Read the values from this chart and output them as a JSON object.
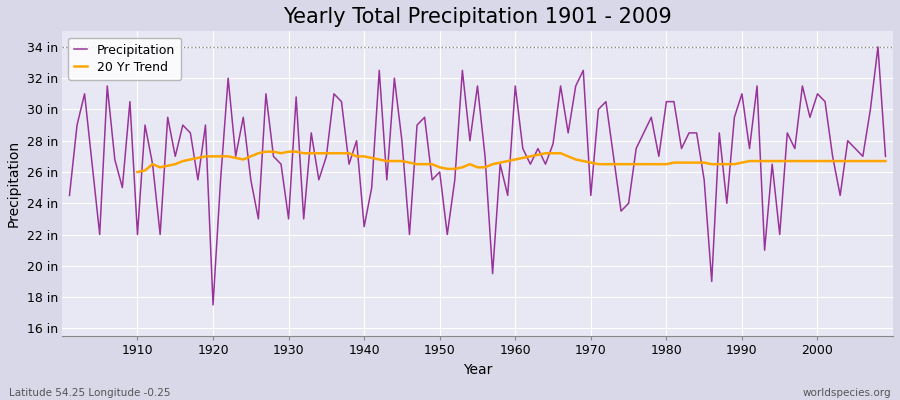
{
  "title": "Yearly Total Precipitation 1901 - 2009",
  "xlabel": "Year",
  "ylabel": "Precipitation",
  "lat_lon_label": "Latitude 54.25 Longitude -0.25",
  "watermark": "worldspecies.org",
  "years": [
    1901,
    1902,
    1903,
    1904,
    1905,
    1906,
    1907,
    1908,
    1909,
    1910,
    1911,
    1912,
    1913,
    1914,
    1915,
    1916,
    1917,
    1918,
    1919,
    1920,
    1921,
    1922,
    1923,
    1924,
    1925,
    1926,
    1927,
    1928,
    1929,
    1930,
    1931,
    1932,
    1933,
    1934,
    1935,
    1936,
    1937,
    1938,
    1939,
    1940,
    1941,
    1942,
    1943,
    1944,
    1945,
    1946,
    1947,
    1948,
    1949,
    1950,
    1951,
    1952,
    1953,
    1954,
    1955,
    1956,
    1957,
    1958,
    1959,
    1960,
    1961,
    1962,
    1963,
    1964,
    1965,
    1966,
    1967,
    1968,
    1969,
    1970,
    1971,
    1972,
    1973,
    1974,
    1975,
    1976,
    1977,
    1978,
    1979,
    1980,
    1981,
    1982,
    1983,
    1984,
    1985,
    1986,
    1987,
    1988,
    1989,
    1990,
    1991,
    1992,
    1993,
    1994,
    1995,
    1996,
    1997,
    1998,
    1999,
    2000,
    2001,
    2002,
    2003,
    2004,
    2005,
    2006,
    2007,
    2008,
    2009
  ],
  "precipitation": [
    24.5,
    29.0,
    31.0,
    26.5,
    22.0,
    31.5,
    26.8,
    25.0,
    30.5,
    22.0,
    29.0,
    26.5,
    22.0,
    29.5,
    27.0,
    29.0,
    28.5,
    25.5,
    29.0,
    17.5,
    25.5,
    32.0,
    27.0,
    29.5,
    25.5,
    23.0,
    31.0,
    27.0,
    26.5,
    23.0,
    30.8,
    23.0,
    28.5,
    25.5,
    27.0,
    31.0,
    30.5,
    26.5,
    28.0,
    22.5,
    25.0,
    32.5,
    25.5,
    32.0,
    28.0,
    22.0,
    29.0,
    29.5,
    25.5,
    26.0,
    22.0,
    25.5,
    32.5,
    28.0,
    31.5,
    27.0,
    19.5,
    26.5,
    24.5,
    31.5,
    27.5,
    26.5,
    27.5,
    26.5,
    27.8,
    31.5,
    28.5,
    31.5,
    32.5,
    24.5,
    30.0,
    30.5,
    27.0,
    23.5,
    24.0,
    27.5,
    28.5,
    29.5,
    27.0,
    30.5,
    30.5,
    27.5,
    28.5,
    28.5,
    25.5,
    19.0,
    28.5,
    24.0,
    29.5,
    31.0,
    27.5,
    31.5,
    21.0,
    26.5,
    22.0,
    28.5,
    27.5,
    31.5,
    29.5,
    31.0,
    30.5,
    27.0,
    24.5,
    28.0,
    27.5,
    27.0,
    30.0,
    34.0,
    27.0
  ],
  "trend_years": [
    1910,
    1911,
    1912,
    1913,
    1914,
    1915,
    1916,
    1917,
    1918,
    1919,
    1920,
    1921,
    1922,
    1923,
    1924,
    1925,
    1926,
    1927,
    1928,
    1929,
    1930,
    1931,
    1932,
    1933,
    1934,
    1935,
    1936,
    1937,
    1938,
    1939,
    1940,
    1941,
    1942,
    1943,
    1944,
    1945,
    1946,
    1947,
    1948,
    1949,
    1950,
    1951,
    1952,
    1953,
    1954,
    1955,
    1956,
    1957,
    1958,
    1959,
    1960,
    1961,
    1962,
    1963,
    1964,
    1965,
    1966,
    1967,
    1968,
    1969,
    1970,
    1971,
    1972,
    1973,
    1974,
    1975,
    1976,
    1977,
    1978,
    1979,
    1980,
    1981,
    1982,
    1983,
    1984,
    1985,
    1986,
    1987,
    1988,
    1989,
    1990,
    1991,
    1992,
    1993,
    1994,
    1995,
    1996,
    1997,
    1998,
    1999,
    2000,
    2001,
    2002,
    2003,
    2004,
    2005,
    2006,
    2007,
    2008,
    2009
  ],
  "trend_values": [
    26.0,
    26.1,
    26.5,
    26.3,
    26.4,
    26.5,
    26.7,
    26.8,
    26.9,
    27.0,
    27.0,
    27.0,
    27.0,
    26.9,
    26.8,
    27.0,
    27.2,
    27.3,
    27.3,
    27.2,
    27.3,
    27.3,
    27.2,
    27.2,
    27.2,
    27.2,
    27.2,
    27.2,
    27.2,
    27.0,
    27.0,
    26.9,
    26.8,
    26.7,
    26.7,
    26.7,
    26.6,
    26.5,
    26.5,
    26.5,
    26.3,
    26.2,
    26.2,
    26.3,
    26.5,
    26.3,
    26.3,
    26.5,
    26.6,
    26.7,
    26.8,
    26.9,
    27.0,
    27.1,
    27.2,
    27.2,
    27.2,
    27.0,
    26.8,
    26.7,
    26.6,
    26.5,
    26.5,
    26.5,
    26.5,
    26.5,
    26.5,
    26.5,
    26.5,
    26.5,
    26.5,
    26.6,
    26.6,
    26.6,
    26.6,
    26.6,
    26.5,
    26.5,
    26.5,
    26.5,
    26.6,
    26.7,
    26.7,
    26.7,
    26.7,
    26.7,
    26.7,
    26.7,
    26.7,
    26.7,
    26.7,
    26.7,
    26.7,
    26.7,
    26.7,
    26.7,
    26.7,
    26.7,
    26.7,
    26.7
  ],
  "precipitation_color": "#993399",
  "trend_color": "#FFA500",
  "fig_bg_color": "#D8D8E8",
  "plot_bg_color": "#E8E8F4",
  "grid_color": "#FFFFFF",
  "ytick_labels": [
    "16 in",
    "18 in",
    "20 in",
    "22 in",
    "24 in",
    "26 in",
    "28 in",
    "30 in",
    "32 in",
    "34 in"
  ],
  "ytick_values": [
    16,
    18,
    20,
    22,
    24,
    26,
    28,
    30,
    32,
    34
  ],
  "ylim": [
    15.5,
    35.0
  ],
  "xlim": [
    1900,
    2010
  ],
  "title_fontsize": 15,
  "axis_label_fontsize": 10,
  "tick_fontsize": 9,
  "legend_fontsize": 9,
  "dotted_line_y": 34,
  "dotted_line_color": "#888888"
}
